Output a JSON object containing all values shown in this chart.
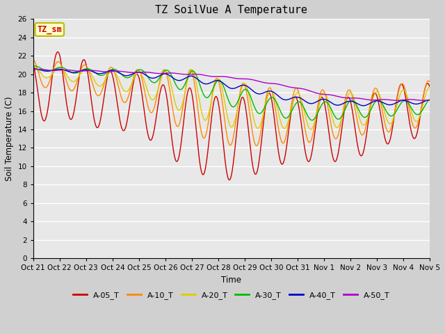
{
  "title": "TZ SoilVue A Temperature",
  "ylabel": "Soil Temperature (C)",
  "xlabel": "Time",
  "ylim": [
    0,
    26
  ],
  "yticks": [
    0,
    2,
    4,
    6,
    8,
    10,
    12,
    14,
    16,
    18,
    20,
    22,
    24,
    26
  ],
  "fig_bg": "#d0d0d0",
  "plot_bg": "#e8e8e8",
  "series": [
    {
      "label": "A-05_T",
      "color": "#cc0000"
    },
    {
      "label": "A-10_T",
      "color": "#ff8800"
    },
    {
      "label": "A-20_T",
      "color": "#ddcc00"
    },
    {
      "label": "A-30_T",
      "color": "#00bb00"
    },
    {
      "label": "A-40_T",
      "color": "#0000cc"
    },
    {
      "label": "A-50_T",
      "color": "#aa00cc"
    }
  ],
  "xtick_labels": [
    "Oct 21",
    "Oct 22",
    "Oct 23",
    "Oct 24",
    "Oct 25",
    "Oct 26",
    "Oct 27",
    "Oct 28",
    "Oct 29",
    "Oct 30",
    "Oct 31",
    "Nov 1",
    "Nov 2",
    "Nov 3",
    "Nov 4",
    "Nov 5"
  ],
  "watermark": "TZ_sm",
  "watermark_bg": "#ffffcc",
  "watermark_border": "#bbbb00"
}
